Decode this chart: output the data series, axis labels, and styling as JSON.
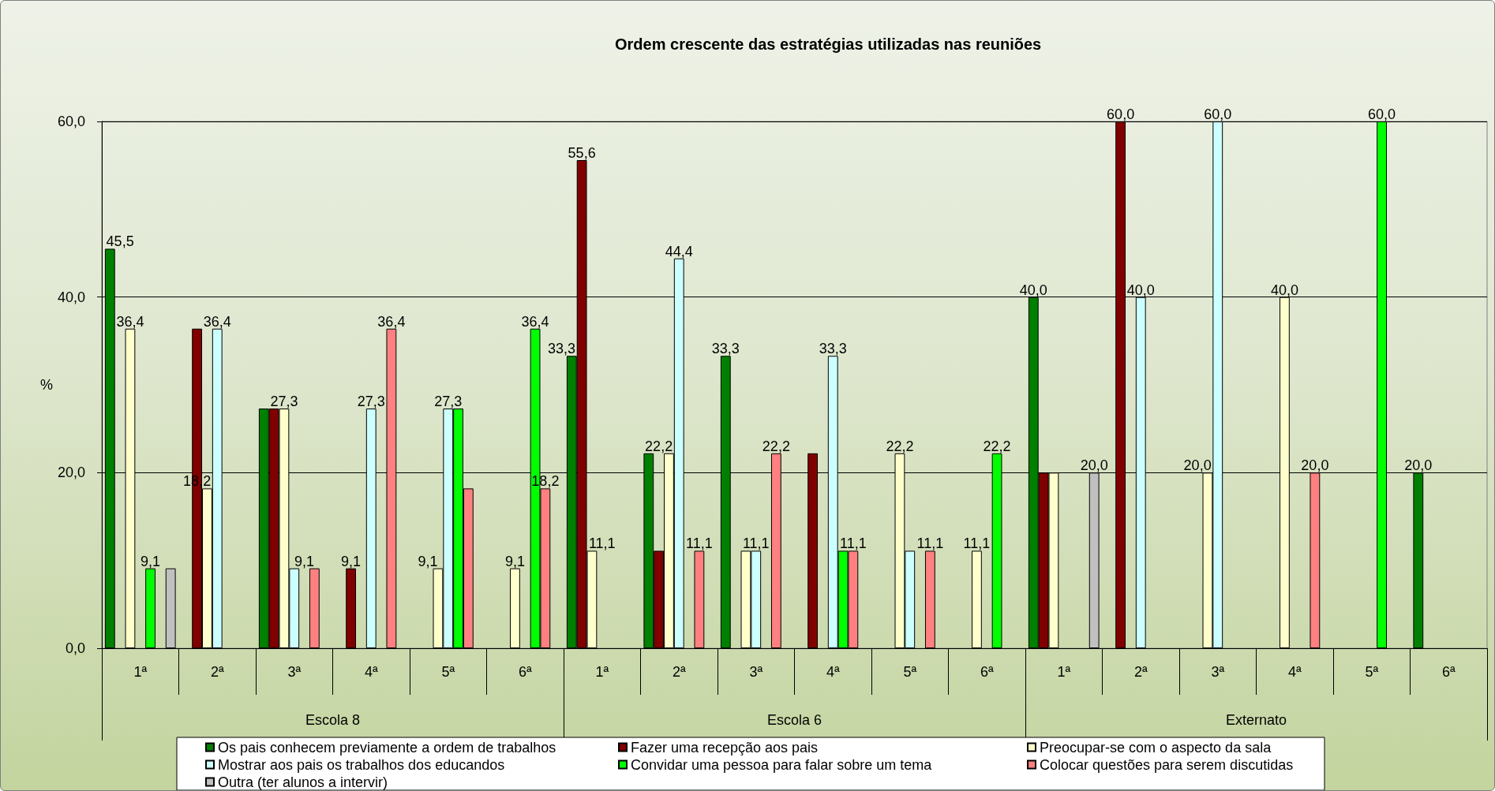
{
  "chart_data": {
    "type": "bar",
    "title": "Ordem crescente das estratégias utilizadas nas reuniões",
    "ylabel": "%",
    "categories": [
      "1ª",
      "2ª",
      "3ª",
      "4ª",
      "5ª",
      "6ª",
      "1ª",
      "2ª",
      "3ª",
      "4ª",
      "5ª",
      "6ª",
      "1ª",
      "2ª",
      "3ª",
      "4ª",
      "5ª",
      "6ª"
    ],
    "annotations": [
      "Escola 8",
      "Escola 6",
      "Externato"
    ],
    "ylim": [
      0,
      60
    ],
    "yticks": [
      {
        "value": 0,
        "label": "0,0"
      },
      {
        "value": 20,
        "label": "20,0"
      },
      {
        "value": 40,
        "label": "40,0"
      },
      {
        "value": 60,
        "label": "60,0"
      }
    ],
    "grid": "y",
    "legend": "bottom",
    "series": [
      {
        "name": "Os pais conhecem previamente a ordem de trabalhos",
        "color": "#008000",
        "values": [
          45.5,
          null,
          27.3,
          null,
          null,
          null,
          33.3,
          22.2,
          33.3,
          null,
          null,
          null,
          40,
          null,
          null,
          null,
          null,
          20
        ],
        "value_labels": [
          "45,5",
          null,
          null,
          null,
          null,
          null,
          "33,3",
          null,
          "33,3",
          null,
          null,
          null,
          "40,0",
          null,
          null,
          null,
          null,
          "20,0"
        ]
      },
      {
        "name": "Fazer uma recepção aos pais",
        "color": "#800000",
        "values": [
          null,
          36.4,
          27.3,
          9.1,
          null,
          null,
          55.6,
          11.1,
          null,
          22.2,
          null,
          null,
          20,
          60,
          null,
          null,
          null,
          null
        ],
        "value_labels": [
          null,
          null,
          null,
          "9,1",
          null,
          null,
          "55,6",
          null,
          null,
          null,
          null,
          null,
          null,
          "60,0",
          null,
          null,
          null,
          null
        ]
      },
      {
        "name": "Preocupar-se com o aspecto da sala",
        "color": "#ffffcc",
        "values": [
          36.4,
          18.2,
          27.3,
          null,
          9.1,
          9.1,
          11.1,
          22.2,
          11.1,
          null,
          22.2,
          11.1,
          20,
          null,
          20,
          40,
          null,
          null
        ],
        "value_labels": [
          "36,4",
          "18,2",
          "27,3",
          null,
          "9,1",
          "9,1",
          "11,1",
          "22,2",
          null,
          null,
          "22,2",
          "11,1",
          null,
          null,
          "20,0",
          "40,0",
          null,
          null
        ]
      },
      {
        "name": "Mostrar aos pais os trabalhos dos educandos",
        "color": "#ccffff",
        "values": [
          null,
          36.4,
          9.1,
          27.3,
          27.3,
          null,
          null,
          44.4,
          11.1,
          33.3,
          11.1,
          null,
          null,
          40,
          60,
          null,
          null,
          null
        ],
        "value_labels": [
          null,
          "36,4",
          "9,1",
          "27,3",
          "27,3",
          null,
          null,
          "44,4",
          "11,1",
          "33,3",
          null,
          null,
          null,
          "40,0",
          "60,0",
          null,
          null,
          null
        ]
      },
      {
        "name": "Convidar uma pessoa para falar sobre um tema",
        "color": "#00ff00",
        "values": [
          9.1,
          null,
          null,
          null,
          27.3,
          36.4,
          null,
          null,
          null,
          11.1,
          null,
          22.2,
          null,
          null,
          null,
          null,
          60,
          null
        ],
        "value_labels": [
          "9,1",
          null,
          null,
          null,
          null,
          "36,4",
          null,
          null,
          null,
          null,
          null,
          "22,2",
          null,
          null,
          null,
          null,
          "60,0",
          null
        ]
      },
      {
        "name": "Colocar questões para serem discutidas",
        "color": "#ff8080",
        "values": [
          null,
          null,
          9.1,
          36.4,
          18.2,
          18.2,
          null,
          11.1,
          22.2,
          11.1,
          11.1,
          null,
          null,
          null,
          null,
          20,
          null,
          null
        ],
        "value_labels": [
          null,
          null,
          null,
          "36,4",
          null,
          "18,2",
          null,
          "11,1",
          "22,2",
          "11,1",
          "11,1",
          null,
          null,
          null,
          null,
          "20,0",
          null,
          null
        ]
      },
      {
        "name": "Outra (ter alunos a intervir)",
        "color": "#c0c0c0",
        "values": [
          9.1,
          null,
          null,
          null,
          null,
          null,
          null,
          null,
          null,
          null,
          null,
          null,
          20,
          null,
          null,
          null,
          null,
          null
        ],
        "value_labels": [
          null,
          null,
          null,
          null,
          null,
          null,
          null,
          null,
          null,
          null,
          null,
          null,
          "20,0",
          null,
          null,
          null,
          null,
          null
        ]
      }
    ]
  }
}
